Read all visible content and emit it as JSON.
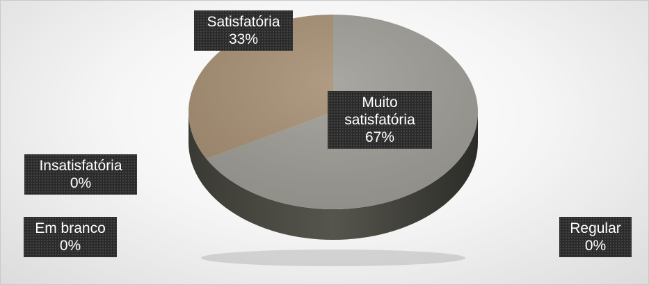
{
  "chart_data": {
    "type": "pie",
    "style": "3d",
    "title": "",
    "slices": [
      {
        "label": "Muito satisfatória",
        "value": 67,
        "display": "67%",
        "color": "#9d9b94"
      },
      {
        "label": "Satisfatória",
        "value": 33,
        "display": "33%",
        "color": "#a58d72"
      },
      {
        "label": "Insatisfatória",
        "value": 0,
        "display": "0%",
        "color": "#8a8a8a"
      },
      {
        "label": "Em branco",
        "value": 0,
        "display": "0%",
        "color": "#8a8a8a"
      },
      {
        "label": "Regular",
        "value": 0,
        "display": "0%",
        "color": "#8a8a8a"
      }
    ],
    "legend": "none",
    "data_labels": "boxed"
  }
}
